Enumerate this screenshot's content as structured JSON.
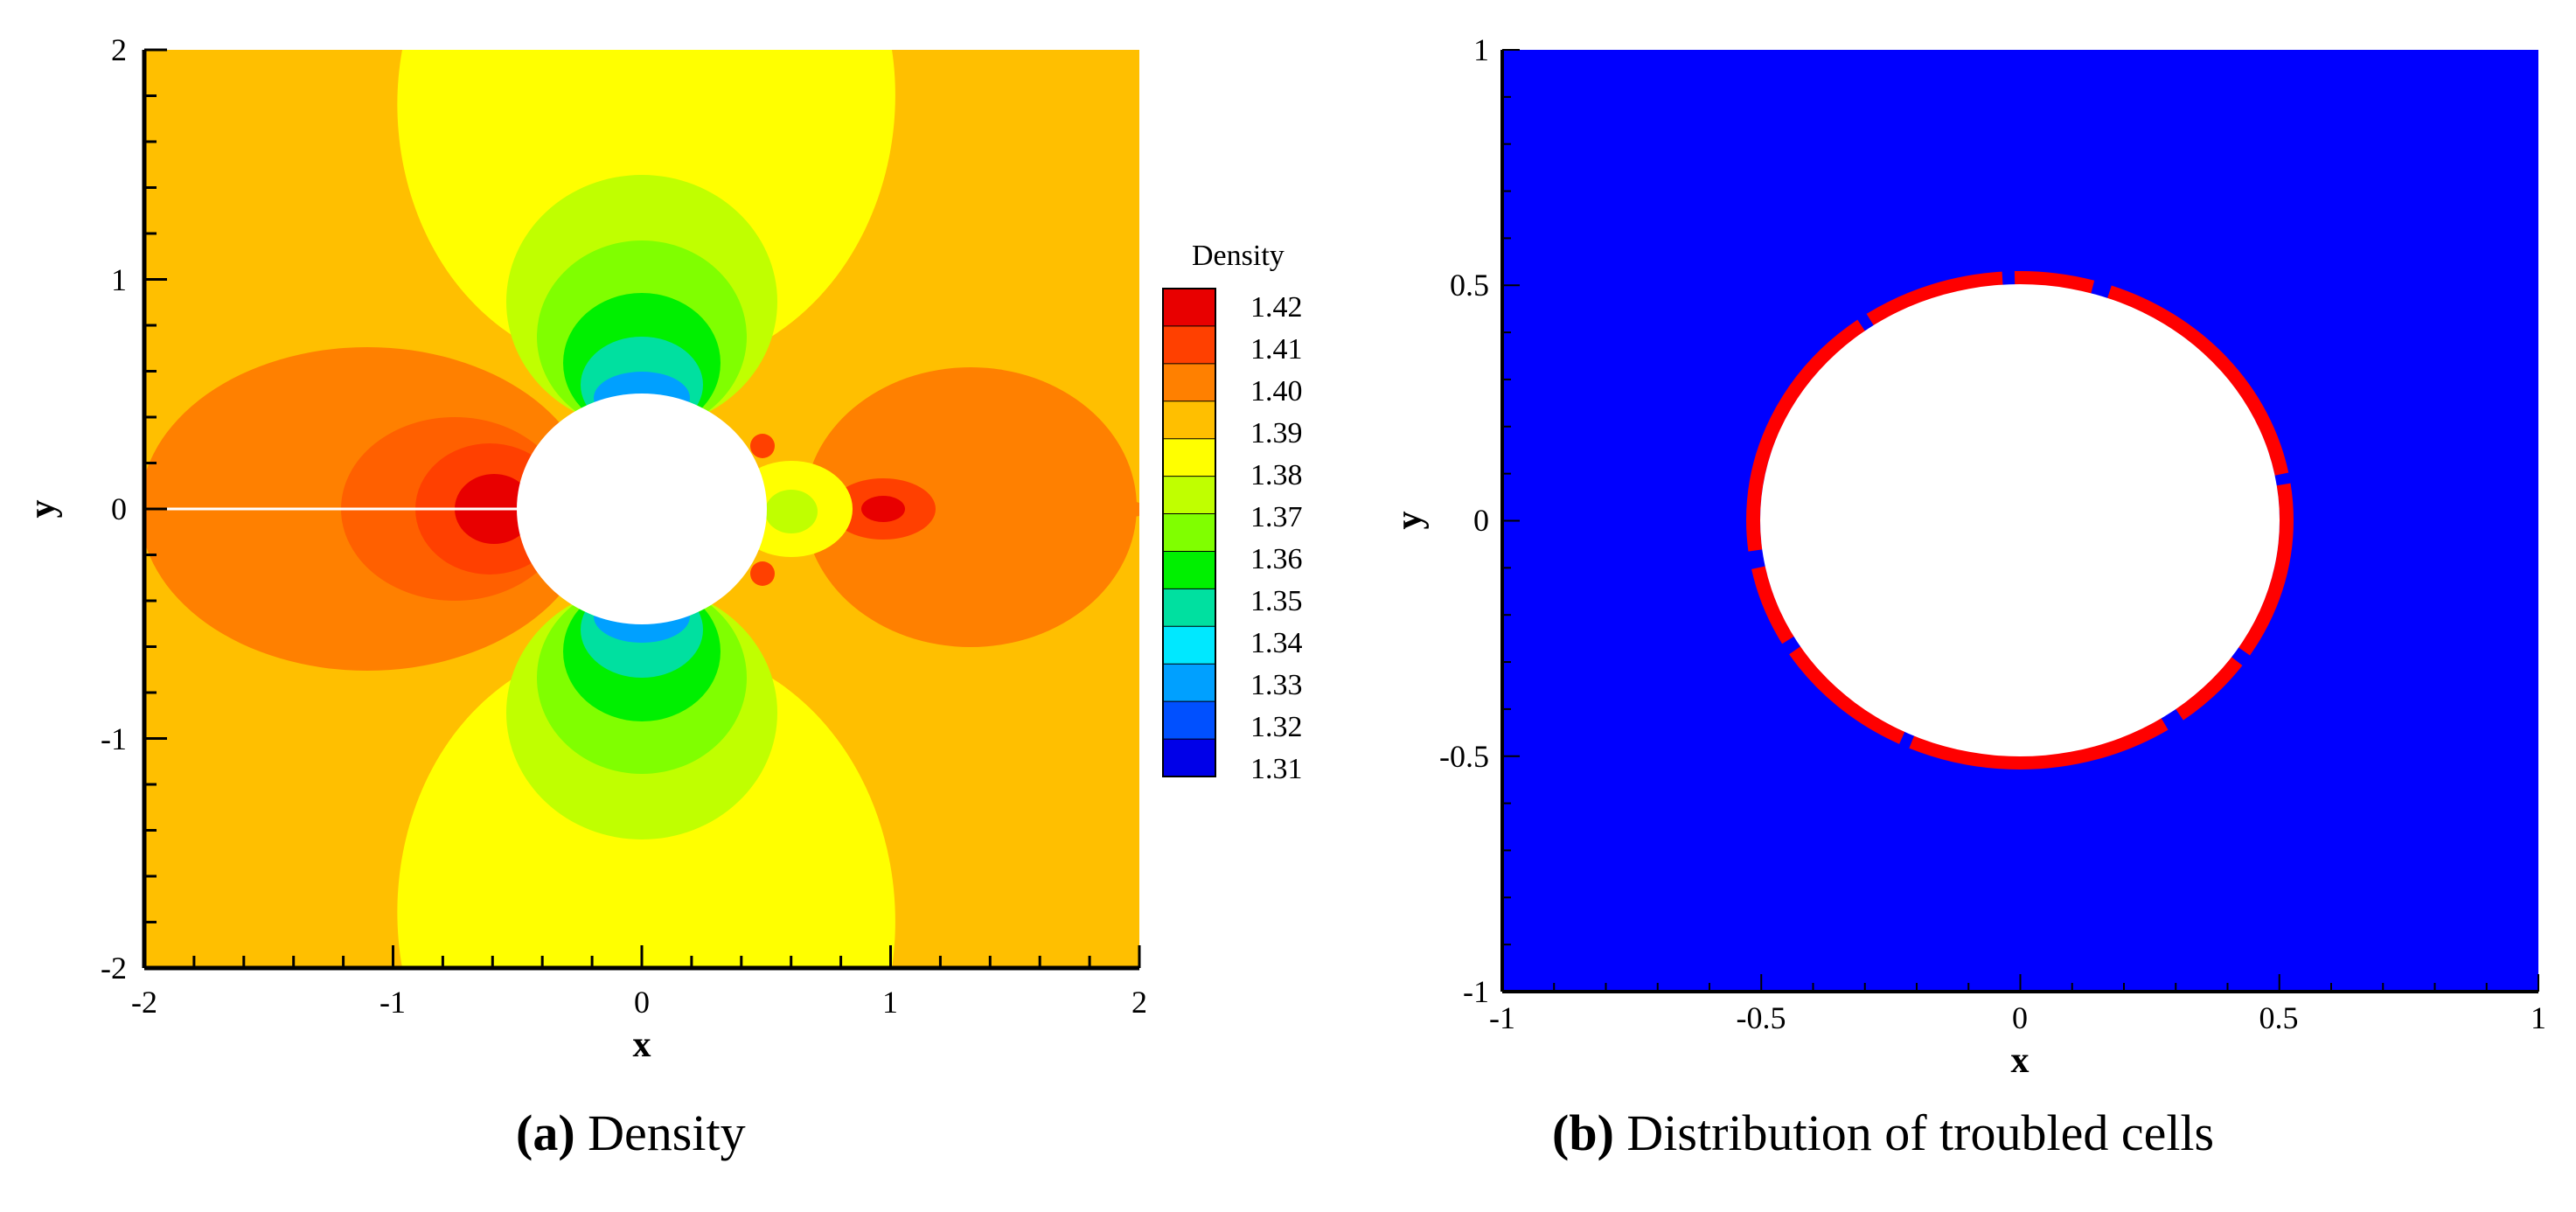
{
  "chart_data": [
    {
      "type": "heatmap",
      "title": "Density",
      "xlabel": "x",
      "ylabel": "y",
      "xlim": [
        -2,
        2
      ],
      "ylim": [
        -2,
        2
      ],
      "x_ticks": [
        "-2",
        "-1",
        "0",
        "1",
        "2"
      ],
      "y_ticks": [
        "-2",
        "-1",
        "0",
        "1",
        "2"
      ],
      "obstacle": {
        "shape": "circle",
        "center": [
          0,
          0
        ],
        "radius": 0.5
      },
      "legend": {
        "title": "Density",
        "levels": [
          "1.42",
          "1.41",
          "1.40",
          "1.39",
          "1.38",
          "1.37",
          "1.36",
          "1.35",
          "1.34",
          "1.33",
          "1.32",
          "1.31"
        ],
        "colors": [
          "#e80000",
          "#ff4000",
          "#ff8000",
          "#ffbf00",
          "#ffff00",
          "#c0ff00",
          "#80ff00",
          "#00f000",
          "#00e0a0",
          "#00e8ff",
          "#00a0ff",
          "#0050ff",
          "#0000e8"
        ]
      },
      "field_description_colors": {
        "background": "#ffbf00",
        "bands": "#ffff00"
      }
    },
    {
      "type": "scatter",
      "title": "Distribution of troubled cells",
      "xlabel": "x",
      "ylabel": "y",
      "xlim": [
        -1,
        1
      ],
      "ylim": [
        -1,
        1
      ],
      "x_ticks": [
        "-1",
        "-0.5",
        "0",
        "0.5",
        "1"
      ],
      "y_ticks": [
        "-1",
        "-0.5",
        "0",
        "0.5",
        "1"
      ],
      "obstacle": {
        "shape": "circle",
        "center": [
          0,
          0
        ],
        "radius": 0.5
      },
      "troubled_cells_ring": {
        "center": [
          0,
          0
        ],
        "radius": 0.505
      },
      "colors": {
        "normal": "#0000ff",
        "troubled": "#ff0000"
      }
    }
  ],
  "captions": [
    {
      "label": "(a)",
      "text": "Density"
    },
    {
      "label": "(b)",
      "text": "Distribution of troubled cells"
    }
  ]
}
